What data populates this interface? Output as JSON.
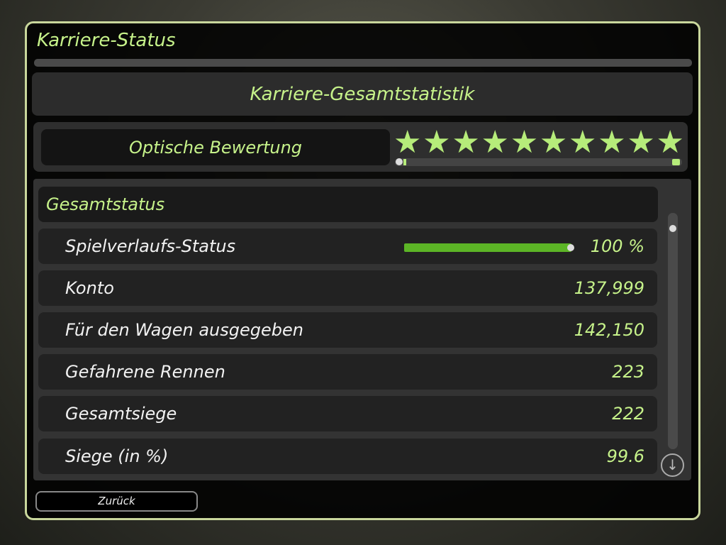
{
  "window": {
    "title": "Karriere-Status",
    "header": "Karriere-Gesamtstatistik"
  },
  "rating": {
    "label": "Optische Bewertung",
    "stars": 10,
    "max_stars": 10,
    "star_color": "#b6ec7a"
  },
  "section": {
    "title": "Gesamtstatus"
  },
  "rows": [
    {
      "label": "Spielverlaufs-Status",
      "value": "100 %",
      "progress": 100
    },
    {
      "label": "Konto",
      "value": "137,999"
    },
    {
      "label": "Für den Wagen ausgegeben",
      "value": "142,150"
    },
    {
      "label": "Gefahrene Rennen",
      "value": "223"
    },
    {
      "label": "Gesamtsiege",
      "value": "222"
    },
    {
      "label": "Siege (in %)",
      "value": "99.6"
    }
  ],
  "buttons": {
    "back": "Zurück"
  },
  "colors": {
    "accent": "#c6f28a",
    "progress": "#5cb526",
    "border": "#c9d79c"
  }
}
